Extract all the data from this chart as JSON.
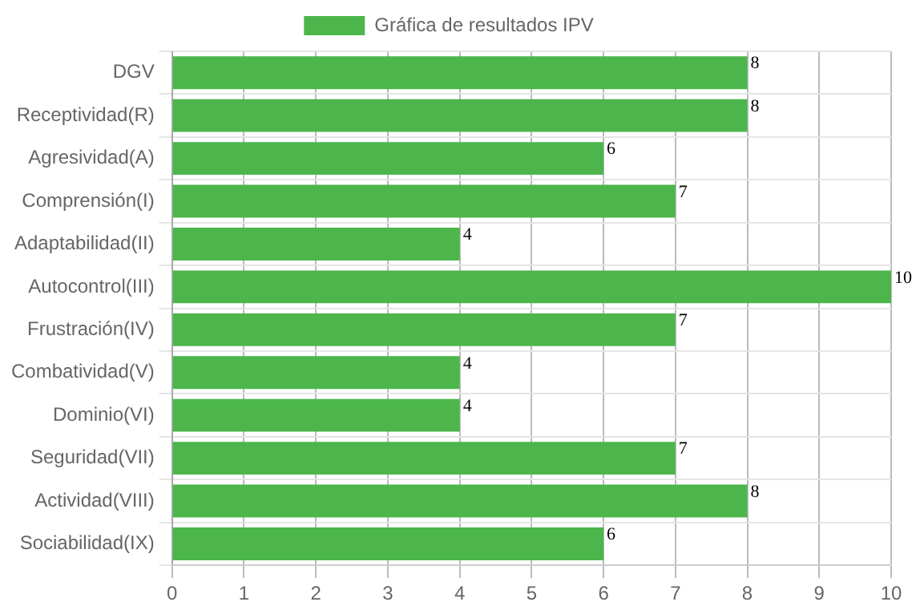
{
  "chart_data": {
    "type": "bar",
    "orientation": "horizontal",
    "categories": [
      "DGV",
      "Receptividad(R)",
      "Agresividad(A)",
      "Comprensión(I)",
      "Adaptabilidad(II)",
      "Autocontrol(III)",
      "Frustración(IV)",
      "Combatividad(V)",
      "Dominio(VI)",
      "Seguridad(VII)",
      "Actividad(VIII)",
      "Sociabilidad(IX)"
    ],
    "series": [
      {
        "name": "Gráfica de resultados IPV",
        "color": "#4cb64c",
        "values": [
          8,
          8,
          6,
          7,
          4,
          10,
          7,
          4,
          4,
          7,
          8,
          6
        ]
      }
    ],
    "xlim": [
      0,
      10
    ],
    "xticks": [
      0,
      1,
      2,
      3,
      4,
      5,
      6,
      7,
      8,
      9,
      10
    ],
    "grid": true,
    "legend": "top",
    "data_labels": true
  }
}
